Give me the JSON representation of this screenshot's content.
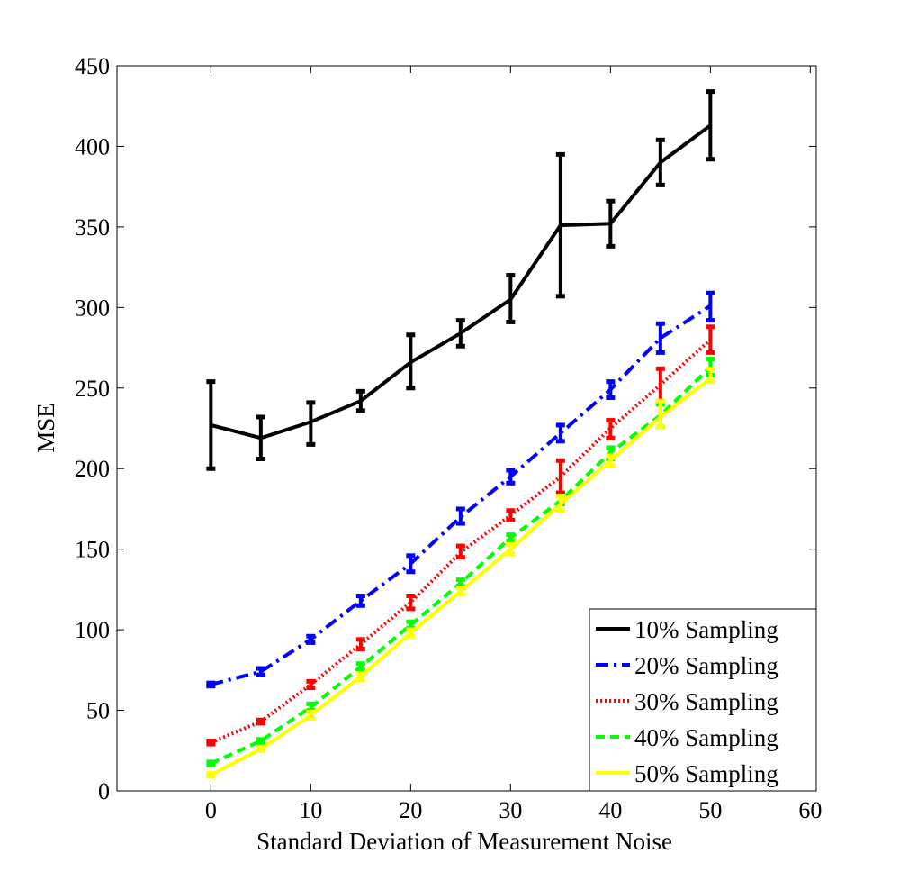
{
  "chart_data": {
    "type": "line",
    "title": "",
    "xlabel": "Standard Deviation of Measurement Noise",
    "ylabel": "MSE",
    "xlim": [
      -9.4,
      60.6
    ],
    "ylim": [
      0,
      450
    ],
    "xticks": [
      0,
      10,
      20,
      30,
      40,
      50,
      60
    ],
    "yticks": [
      0,
      50,
      100,
      150,
      200,
      250,
      300,
      350,
      400,
      450
    ],
    "grid": false,
    "legend_position": "bottom-right",
    "x": [
      0,
      5,
      10,
      15,
      20,
      25,
      30,
      35,
      40,
      45,
      50
    ],
    "series": [
      {
        "name": "10% Sampling",
        "color": "#000000",
        "style": "solid",
        "values": [
          227,
          219,
          229,
          242,
          266,
          284,
          305,
          351,
          352,
          390,
          413
        ],
        "lower": [
          200,
          206,
          215,
          236,
          250,
          276,
          291,
          307,
          338,
          376,
          392
        ],
        "upper": [
          254,
          232,
          241,
          248,
          283,
          292,
          320,
          395,
          366,
          404,
          434
        ]
      },
      {
        "name": "20% Sampling",
        "color": "#0000ff",
        "style": "dashdot",
        "values": [
          66,
          74,
          94,
          118,
          141,
          170,
          195,
          222,
          249,
          281,
          301
        ],
        "lower": [
          65,
          72,
          92,
          115,
          136,
          166,
          191,
          217,
          244,
          272,
          292
        ],
        "upper": [
          67,
          76,
          96,
          121,
          146,
          175,
          199,
          227,
          254,
          290,
          309
        ]
      },
      {
        "name": "30% Sampling",
        "color": "#ff0000",
        "style": "dotted",
        "values": [
          30,
          43,
          66,
          91,
          117,
          148,
          171,
          195,
          225,
          252,
          280
        ],
        "lower": [
          29,
          42,
          64,
          88,
          113,
          145,
          168,
          185,
          219,
          242,
          272
        ],
        "upper": [
          31,
          44,
          68,
          94,
          121,
          152,
          174,
          205,
          230,
          262,
          288
        ]
      },
      {
        "name": "40% Sampling",
        "color": "#00ff00",
        "style": "dashed",
        "values": [
          17,
          31,
          52,
          77,
          103,
          129,
          157,
          180,
          210,
          233,
          263
        ],
        "lower": [
          16,
          30,
          50,
          75,
          101,
          127,
          155,
          178,
          206,
          226,
          258
        ],
        "upper": [
          18,
          32,
          54,
          79,
          105,
          131,
          159,
          183,
          213,
          240,
          268
        ]
      },
      {
        "name": "50% Sampling",
        "color": "#ffff00",
        "style": "solid",
        "values": [
          10,
          26,
          47,
          71,
          98,
          124,
          150,
          178,
          205,
          232,
          256
        ],
        "lower": [
          9,
          25,
          45,
          69,
          96,
          122,
          147,
          174,
          202,
          226,
          254
        ],
        "upper": [
          11,
          27,
          49,
          73,
          100,
          126,
          153,
          183,
          208,
          242,
          262
        ]
      }
    ]
  }
}
